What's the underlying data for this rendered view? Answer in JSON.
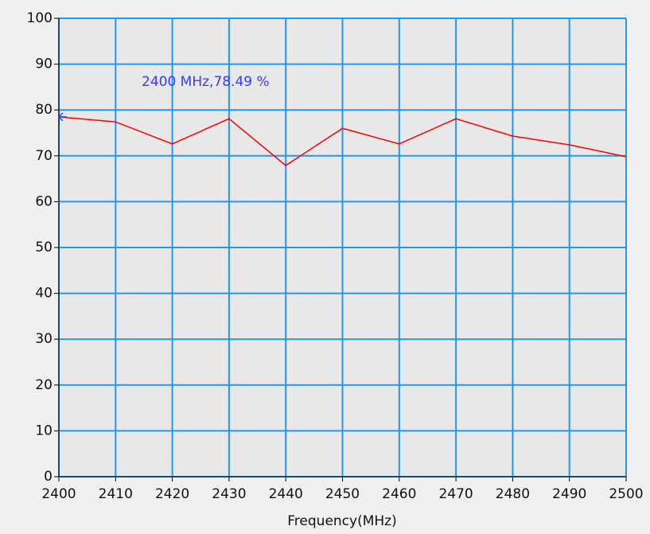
{
  "chart_data": {
    "type": "line",
    "xlabel": "Frequency(MHz)",
    "annotation": "2400 MHz,78.49 %",
    "x": [
      2400,
      2410,
      2420,
      2430,
      2440,
      2450,
      2460,
      2470,
      2480,
      2490,
      2500
    ],
    "series": [
      {
        "color": "#ff0000",
        "values": [
          78.49,
          77.4,
          72.6,
          78.1,
          67.9,
          76.0,
          72.6,
          78.1,
          74.3,
          72.4,
          69.8
        ]
      }
    ],
    "xlim": [
      2400,
      2500
    ],
    "xticks": [
      2400,
      2410,
      2420,
      2430,
      2440,
      2450,
      2460,
      2470,
      2480,
      2490,
      2500
    ],
    "ylim": [
      0,
      100
    ],
    "yticks": [
      0,
      10,
      20,
      30,
      40,
      50,
      60,
      70,
      80,
      90,
      100
    ],
    "grid": true,
    "grid_color": "#2196f3"
  }
}
